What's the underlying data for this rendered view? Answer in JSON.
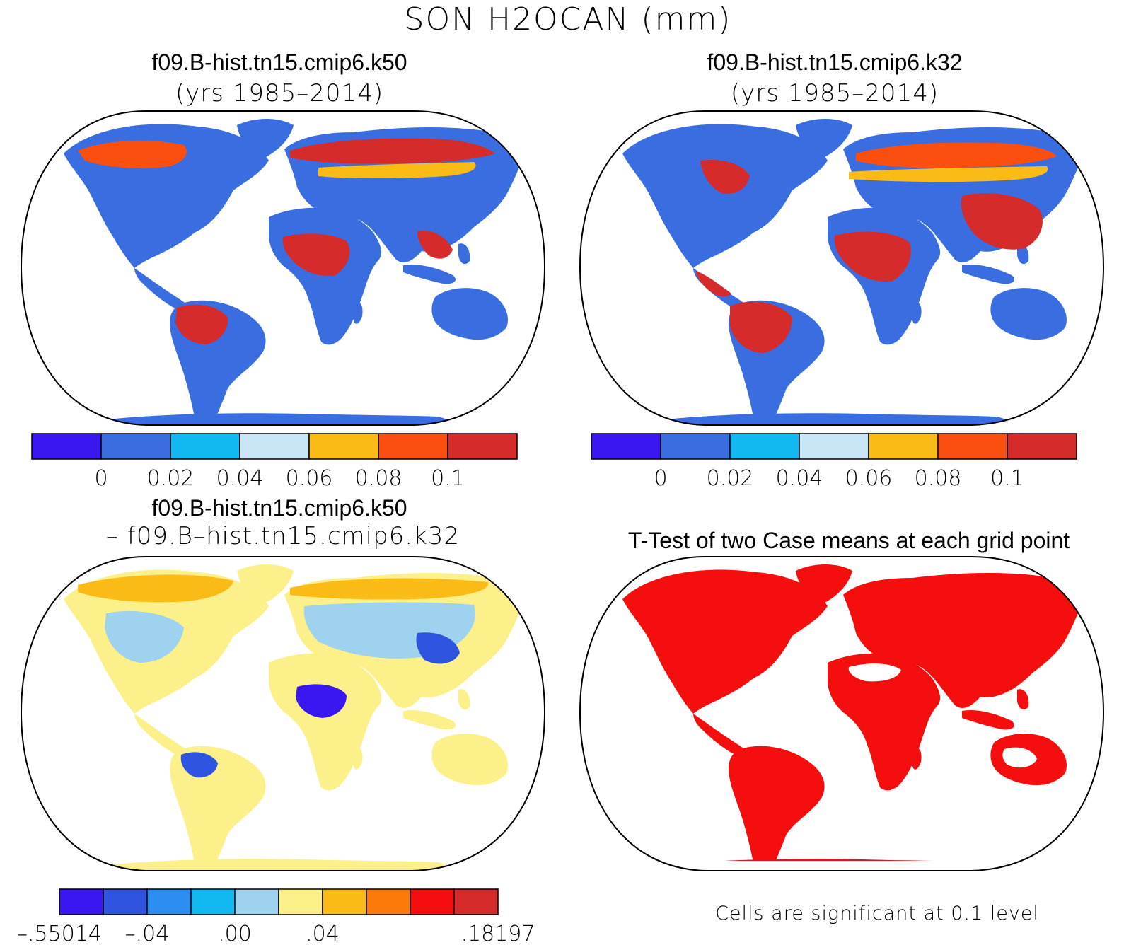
{
  "figure": {
    "title": "SON H2OCAN (mm)"
  },
  "panels": [
    {
      "title": "f09.B-hist.tn15.cmip6.k50",
      "subtitle": "(yrs 1985–2014)",
      "kind": "field"
    },
    {
      "title": "f09.B-hist.tn15.cmip6.k32",
      "subtitle": "(yrs 1985–2014)",
      "kind": "field"
    },
    {
      "title": "f09.B-hist.tn15.cmip6.k50",
      "subtitle": "– f09.B–hist.tn15.cmip6.k32",
      "kind": "difference"
    },
    {
      "title": "T-Test of two Case means at each grid point",
      "note": "Cells are significant at 0.1 level",
      "kind": "significance"
    }
  ],
  "colorbars": {
    "field": {
      "colors": [
        "#3a16f0",
        "#3a6ee0",
        "#12b8f0",
        "#c8e6f5",
        "#fbbb16",
        "#fb4f10",
        "#d62b2b"
      ],
      "labels": [
        "0",
        "0.02",
        "0.04",
        "0.06",
        "0.08",
        "0.1"
      ]
    },
    "difference": {
      "colors": [
        "#3a16f0",
        "#2f55e0",
        "#2c8ef0",
        "#12b8f0",
        "#9ed2ef",
        "#fcf08a",
        "#fbbb16",
        "#fb7a0a",
        "#f40e0e",
        "#d62b2b"
      ],
      "labels": [
        "–.55014",
        "–.04",
        ".00",
        ".04",
        ".18197"
      ],
      "label_slots": [
        0,
        2,
        4,
        6,
        10
      ]
    }
  },
  "significance": {
    "fill_color": "#f40e0e"
  }
}
